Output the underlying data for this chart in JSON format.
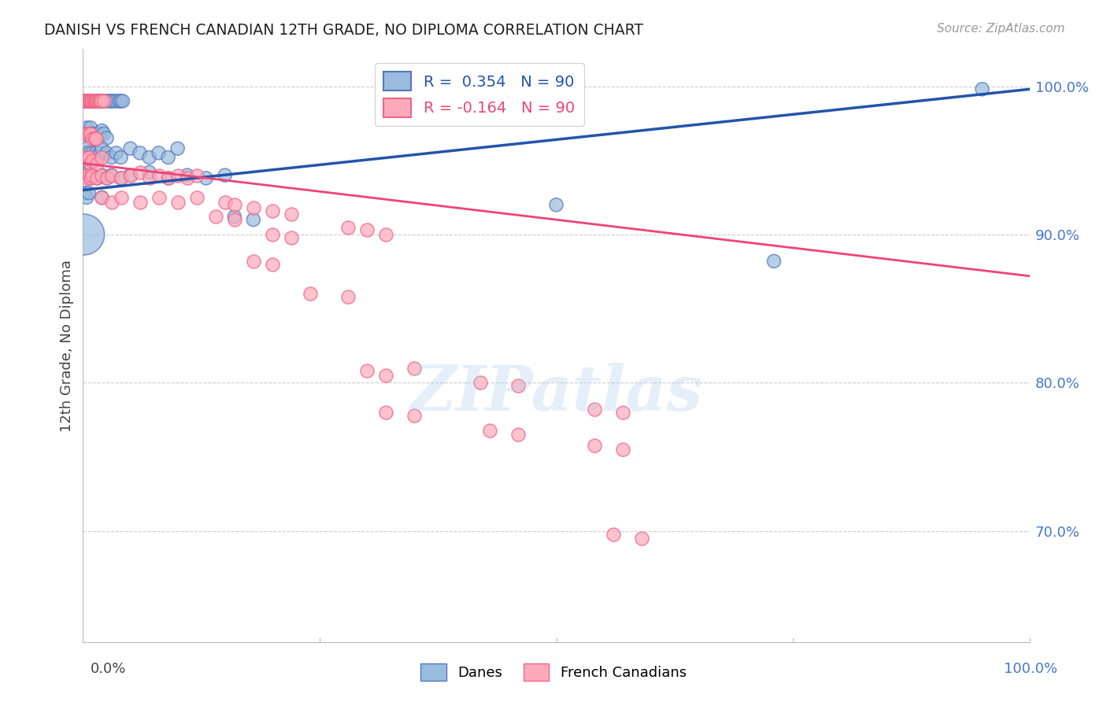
{
  "title": "DANISH VS FRENCH CANADIAN 12TH GRADE, NO DIPLOMA CORRELATION CHART",
  "source": "Source: ZipAtlas.com",
  "ylabel": "12th Grade, No Diploma",
  "y_tick_labels": [
    "100.0%",
    "90.0%",
    "80.0%",
    "70.0%"
  ],
  "y_tick_values": [
    1.0,
    0.9,
    0.8,
    0.7
  ],
  "xlim": [
    0.0,
    1.0
  ],
  "ylim": [
    0.625,
    1.025
  ],
  "blue_R": 0.354,
  "pink_R": -0.164,
  "N": 90,
  "legend_label_blue": "Danes",
  "legend_label_pink": "French Canadians",
  "blue_color": "#99BBDD",
  "pink_color": "#FFAABB",
  "blue_edge_color": "#5577BB",
  "pink_edge_color": "#EE6688",
  "blue_line_color": "#2255AA",
  "pink_line_color": "#EE4477",
  "blue_trendline": [
    [
      0.0,
      0.93
    ],
    [
      1.0,
      0.998
    ]
  ],
  "pink_trendline": [
    [
      0.0,
      0.948
    ],
    [
      1.0,
      0.872
    ]
  ],
  "watermark": "ZIPatlas",
  "background_color": "#FFFFFF",
  "grid_color": "#CCCCCC",
  "blue_scatter": [
    [
      0.001,
      0.99
    ],
    [
      0.002,
      0.99
    ],
    [
      0.003,
      0.99
    ],
    [
      0.004,
      0.99
    ],
    [
      0.005,
      0.99
    ],
    [
      0.006,
      0.99
    ],
    [
      0.007,
      0.99
    ],
    [
      0.008,
      0.99
    ],
    [
      0.009,
      0.99
    ],
    [
      0.01,
      0.99
    ],
    [
      0.011,
      0.99
    ],
    [
      0.012,
      0.99
    ],
    [
      0.013,
      0.99
    ],
    [
      0.014,
      0.99
    ],
    [
      0.015,
      0.99
    ],
    [
      0.016,
      0.99
    ],
    [
      0.017,
      0.99
    ],
    [
      0.018,
      0.99
    ],
    [
      0.02,
      0.99
    ],
    [
      0.022,
      0.99
    ],
    [
      0.025,
      0.99
    ],
    [
      0.028,
      0.99
    ],
    [
      0.03,
      0.99
    ],
    [
      0.032,
      0.99
    ],
    [
      0.035,
      0.99
    ],
    [
      0.038,
      0.99
    ],
    [
      0.04,
      0.99
    ],
    [
      0.042,
      0.99
    ],
    [
      0.002,
      0.968
    ],
    [
      0.004,
      0.972
    ],
    [
      0.006,
      0.968
    ],
    [
      0.008,
      0.972
    ],
    [
      0.01,
      0.968
    ],
    [
      0.012,
      0.965
    ],
    [
      0.014,
      0.968
    ],
    [
      0.016,
      0.965
    ],
    [
      0.018,
      0.968
    ],
    [
      0.02,
      0.97
    ],
    [
      0.022,
      0.968
    ],
    [
      0.025,
      0.965
    ],
    [
      0.002,
      0.955
    ],
    [
      0.004,
      0.958
    ],
    [
      0.006,
      0.955
    ],
    [
      0.008,
      0.952
    ],
    [
      0.01,
      0.955
    ],
    [
      0.012,
      0.952
    ],
    [
      0.014,
      0.955
    ],
    [
      0.016,
      0.952
    ],
    [
      0.018,
      0.955
    ],
    [
      0.02,
      0.958
    ],
    [
      0.025,
      0.955
    ],
    [
      0.03,
      0.952
    ],
    [
      0.035,
      0.955
    ],
    [
      0.04,
      0.952
    ],
    [
      0.05,
      0.958
    ],
    [
      0.06,
      0.955
    ],
    [
      0.07,
      0.952
    ],
    [
      0.08,
      0.955
    ],
    [
      0.09,
      0.952
    ],
    [
      0.1,
      0.958
    ],
    [
      0.002,
      0.942
    ],
    [
      0.004,
      0.94
    ],
    [
      0.006,
      0.942
    ],
    [
      0.008,
      0.938
    ],
    [
      0.01,
      0.94
    ],
    [
      0.015,
      0.938
    ],
    [
      0.02,
      0.94
    ],
    [
      0.025,
      0.938
    ],
    [
      0.03,
      0.94
    ],
    [
      0.04,
      0.938
    ],
    [
      0.05,
      0.94
    ],
    [
      0.07,
      0.942
    ],
    [
      0.09,
      0.938
    ],
    [
      0.11,
      0.94
    ],
    [
      0.13,
      0.938
    ],
    [
      0.15,
      0.94
    ],
    [
      0.002,
      0.928
    ],
    [
      0.004,
      0.925
    ],
    [
      0.006,
      0.928
    ],
    [
      0.02,
      0.925
    ],
    [
      0.16,
      0.912
    ],
    [
      0.18,
      0.91
    ],
    [
      0.5,
      0.92
    ],
    [
      0.001,
      0.9
    ],
    [
      0.73,
      0.882
    ],
    [
      0.95,
      0.998
    ]
  ],
  "blue_scatter_sizes": [
    150,
    150,
    150,
    150,
    150,
    150,
    150,
    150,
    150,
    150,
    150,
    150,
    150,
    150,
    150,
    150,
    150,
    150,
    150,
    150,
    150,
    150,
    150,
    150,
    150,
    150,
    150,
    150,
    150,
    150,
    150,
    150,
    150,
    150,
    150,
    150,
    150,
    150,
    150,
    150,
    150,
    150,
    150,
    150,
    150,
    150,
    150,
    150,
    150,
    150,
    150,
    150,
    150,
    150,
    150,
    150,
    150,
    150,
    150,
    150,
    150,
    150,
    150,
    150,
    150,
    150,
    150,
    150,
    150,
    150,
    150,
    150,
    150,
    150,
    150,
    150,
    150,
    150,
    150,
    150,
    150,
    150,
    150,
    1400,
    150,
    150
  ],
  "pink_scatter": [
    [
      0.001,
      0.99
    ],
    [
      0.002,
      0.99
    ],
    [
      0.003,
      0.99
    ],
    [
      0.004,
      0.99
    ],
    [
      0.005,
      0.99
    ],
    [
      0.006,
      0.99
    ],
    [
      0.007,
      0.99
    ],
    [
      0.008,
      0.99
    ],
    [
      0.009,
      0.99
    ],
    [
      0.01,
      0.99
    ],
    [
      0.011,
      0.99
    ],
    [
      0.012,
      0.99
    ],
    [
      0.013,
      0.99
    ],
    [
      0.014,
      0.99
    ],
    [
      0.015,
      0.99
    ],
    [
      0.016,
      0.99
    ],
    [
      0.017,
      0.99
    ],
    [
      0.018,
      0.99
    ],
    [
      0.02,
      0.99
    ],
    [
      0.022,
      0.99
    ],
    [
      0.002,
      0.968
    ],
    [
      0.004,
      0.968
    ],
    [
      0.006,
      0.968
    ],
    [
      0.008,
      0.968
    ],
    [
      0.01,
      0.965
    ],
    [
      0.012,
      0.965
    ],
    [
      0.014,
      0.965
    ],
    [
      0.002,
      0.952
    ],
    [
      0.004,
      0.952
    ],
    [
      0.006,
      0.952
    ],
    [
      0.008,
      0.948
    ],
    [
      0.01,
      0.95
    ],
    [
      0.015,
      0.948
    ],
    [
      0.02,
      0.952
    ],
    [
      0.002,
      0.94
    ],
    [
      0.004,
      0.938
    ],
    [
      0.006,
      0.94
    ],
    [
      0.008,
      0.938
    ],
    [
      0.01,
      0.94
    ],
    [
      0.015,
      0.938
    ],
    [
      0.02,
      0.94
    ],
    [
      0.025,
      0.938
    ],
    [
      0.03,
      0.94
    ],
    [
      0.04,
      0.938
    ],
    [
      0.05,
      0.94
    ],
    [
      0.06,
      0.942
    ],
    [
      0.07,
      0.938
    ],
    [
      0.08,
      0.94
    ],
    [
      0.09,
      0.938
    ],
    [
      0.1,
      0.94
    ],
    [
      0.11,
      0.938
    ],
    [
      0.12,
      0.94
    ],
    [
      0.02,
      0.925
    ],
    [
      0.03,
      0.922
    ],
    [
      0.04,
      0.925
    ],
    [
      0.06,
      0.922
    ],
    [
      0.08,
      0.925
    ],
    [
      0.1,
      0.922
    ],
    [
      0.12,
      0.925
    ],
    [
      0.15,
      0.922
    ],
    [
      0.16,
      0.92
    ],
    [
      0.18,
      0.918
    ],
    [
      0.2,
      0.916
    ],
    [
      0.22,
      0.914
    ],
    [
      0.14,
      0.912
    ],
    [
      0.16,
      0.91
    ],
    [
      0.2,
      0.9
    ],
    [
      0.22,
      0.898
    ],
    [
      0.28,
      0.905
    ],
    [
      0.3,
      0.903
    ],
    [
      0.32,
      0.9
    ],
    [
      0.18,
      0.882
    ],
    [
      0.2,
      0.88
    ],
    [
      0.24,
      0.86
    ],
    [
      0.28,
      0.858
    ],
    [
      0.3,
      0.808
    ],
    [
      0.32,
      0.805
    ],
    [
      0.35,
      0.81
    ],
    [
      0.32,
      0.78
    ],
    [
      0.35,
      0.778
    ],
    [
      0.42,
      0.8
    ],
    [
      0.46,
      0.798
    ],
    [
      0.43,
      0.768
    ],
    [
      0.46,
      0.765
    ],
    [
      0.54,
      0.782
    ],
    [
      0.57,
      0.78
    ],
    [
      0.54,
      0.758
    ],
    [
      0.57,
      0.755
    ],
    [
      0.56,
      0.698
    ],
    [
      0.59,
      0.695
    ]
  ]
}
